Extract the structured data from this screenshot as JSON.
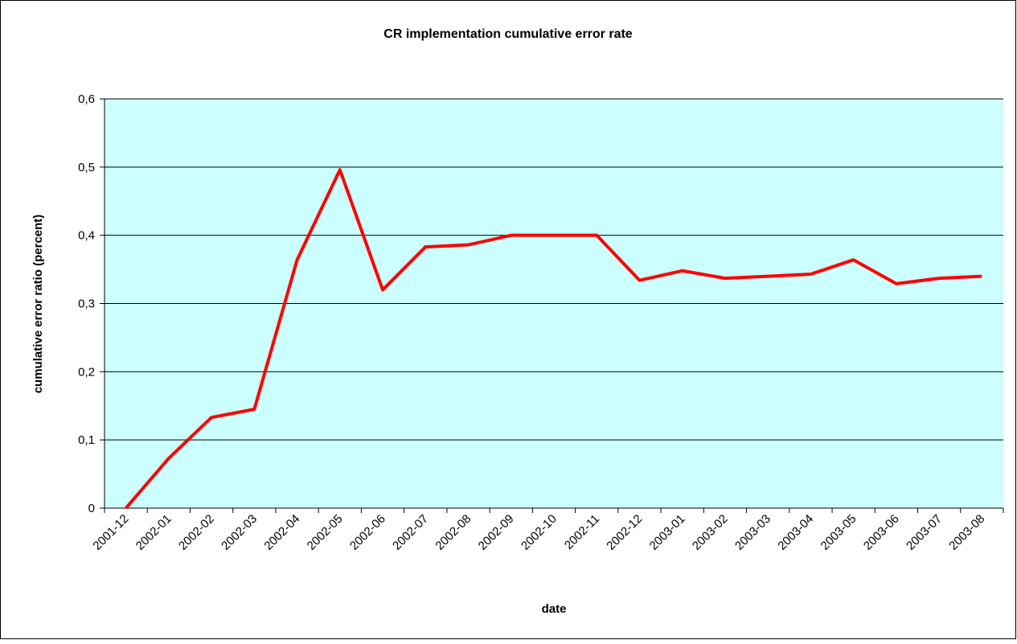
{
  "chart_data": {
    "type": "line",
    "title": "CR implementation cumulative error rate",
    "x_label": "date",
    "y_label": "cumulative error ratio (percent)",
    "categories": [
      "2001-12",
      "2002-01",
      "2002-02",
      "2002-03",
      "2002-04",
      "2002-05",
      "2002-06",
      "2002-07",
      "2002-08",
      "2002-09",
      "2002-10",
      "2002-11",
      "2002-12",
      "2003-01",
      "2003-02",
      "2003-03",
      "2003-04",
      "2003-05",
      "2003-06",
      "2003-07",
      "2003-08"
    ],
    "series": [
      {
        "name": "cumulative error ratio",
        "color": "#ff0000",
        "values": [
          0,
          0.073,
          0.133,
          0.145,
          0.364,
          0.496,
          0.32,
          0.383,
          0.386,
          0.4,
          0.4,
          0.4,
          0.334,
          0.348,
          0.337,
          0.34,
          0.343,
          0.364,
          0.329,
          0.337,
          0.34
        ]
      }
    ],
    "ylim": [
      0,
      0.6
    ],
    "yticks": [
      0,
      {
        "value": 0.1,
        "label": "0,1"
      },
      {
        "value": 0.2,
        "label": "0,2"
      },
      {
        "value": 0.3,
        "label": "0,3"
      },
      {
        "value": 0.4,
        "label": "0,4"
      },
      {
        "value": 0.5,
        "label": "0,5"
      },
      {
        "value": 0.6,
        "label": "0,6"
      }
    ],
    "grid": true,
    "plot_background": "#ccffff"
  }
}
